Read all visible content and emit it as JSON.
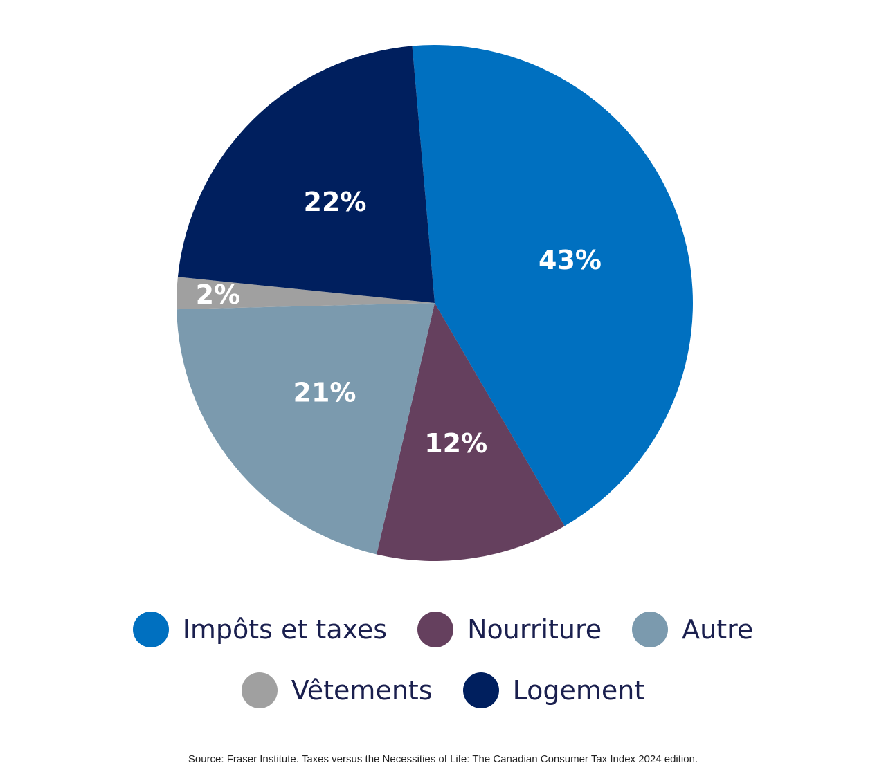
{
  "chart_data": {
    "type": "pie",
    "slices": [
      {
        "name": "Impôts et taxes",
        "value": 43,
        "label": "43%",
        "color": "#0070C0"
      },
      {
        "name": "Nourriture",
        "value": 12,
        "label": "12%",
        "color": "#65405E"
      },
      {
        "name": "Autre",
        "value": 21,
        "label": "21%",
        "color": "#7B9AAE"
      },
      {
        "name": "Vêtements",
        "value": 2,
        "label": "2%",
        "color": "#A0A0A0"
      },
      {
        "name": "Logement",
        "value": 22,
        "label": "22%",
        "color": "#001F5E"
      }
    ],
    "legend": {
      "items": [
        "Impôts et taxes",
        "Nourriture",
        "Autre",
        "Vêtements",
        "Logement"
      ],
      "placement": "bottom"
    }
  },
  "source": "Source: Fraser Institute. Taxes versus the Necessities of Life: The Canadian Consumer Tax Index 2024 edition."
}
